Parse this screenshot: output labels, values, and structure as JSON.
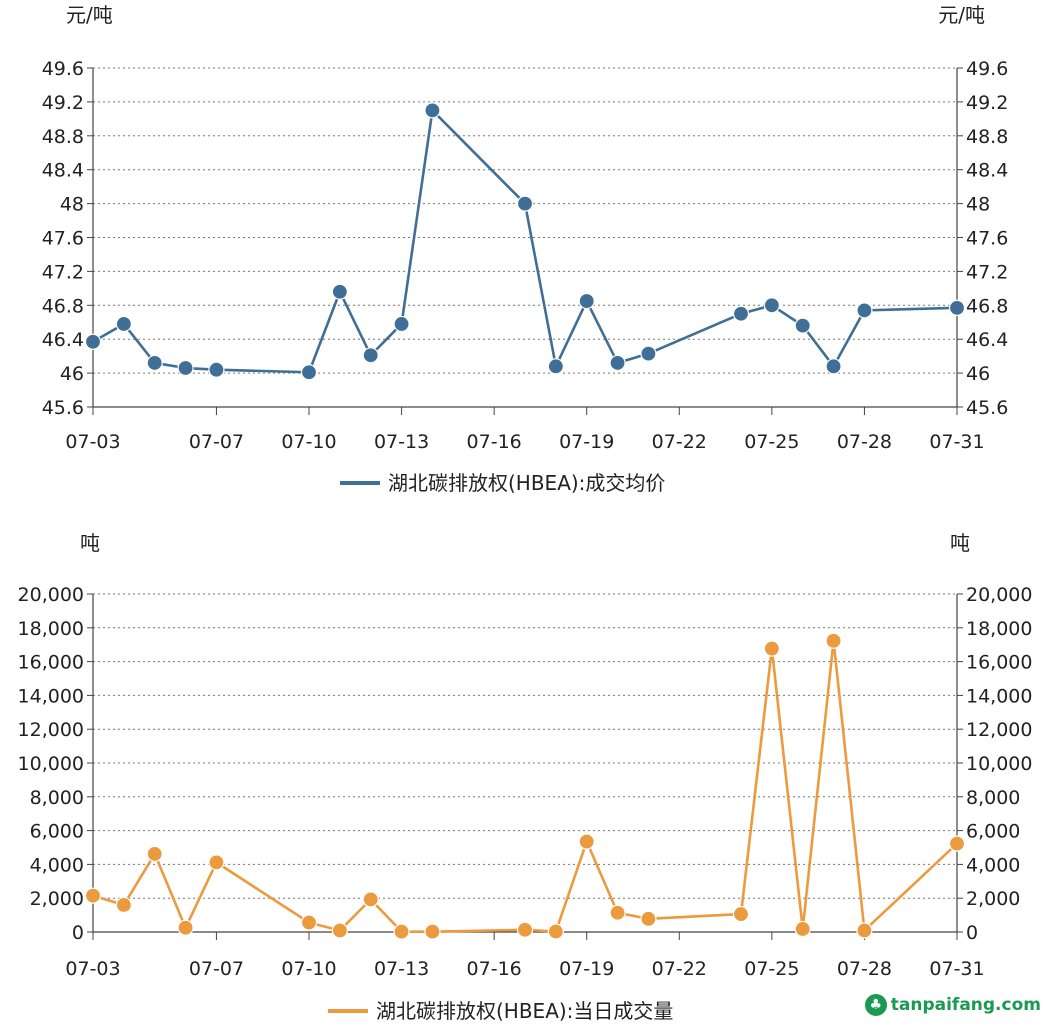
{
  "chart_data": [
    {
      "type": "line",
      "unit_left": "元/吨",
      "unit_right": "元/吨",
      "ylim": [
        45.6,
        49.6
      ],
      "yticks": [
        "49.6",
        "49.2",
        "48.8",
        "48.4",
        "48",
        "47.6",
        "47.2",
        "46.8",
        "46.4",
        "46",
        "45.6"
      ],
      "xticks": [
        "07-03",
        "07-07",
        "07-10",
        "07-13",
        "07-16",
        "07-19",
        "07-22",
        "07-25",
        "07-28",
        "07-31"
      ],
      "legend": "湖北碳排放权(HBEA):成交均价",
      "color": "#3f6f96",
      "series": [
        {
          "x": [
            "07-03",
            "07-04",
            "07-05",
            "07-06",
            "07-07",
            "07-10",
            "07-11",
            "07-12",
            "07-13",
            "07-14",
            "07-17",
            "07-18",
            "07-19",
            "07-20",
            "07-21",
            "07-24",
            "07-25",
            "07-26",
            "07-27",
            "07-28",
            "07-31"
          ],
          "values": [
            46.37,
            46.58,
            46.12,
            46.06,
            46.04,
            46.01,
            46.96,
            46.21,
            46.58,
            49.1,
            48.0,
            46.08,
            46.85,
            46.12,
            46.23,
            46.7,
            46.8,
            46.56,
            46.08,
            46.74,
            46.77
          ]
        }
      ]
    },
    {
      "type": "line",
      "unit_left": "吨",
      "unit_right": "吨",
      "ylim": [
        0,
        20000
      ],
      "yticks": [
        "20,000",
        "18,000",
        "16,000",
        "14,000",
        "12,000",
        "10,000",
        "8,000",
        "6,000",
        "4,000",
        "2,000",
        "0"
      ],
      "xticks": [
        "07-03",
        "07-07",
        "07-10",
        "07-13",
        "07-16",
        "07-19",
        "07-22",
        "07-25",
        "07-28",
        "07-31"
      ],
      "legend": "湖北碳排放权(HBEA):当日成交量",
      "color": "#ec9a3e",
      "series": [
        {
          "x": [
            "07-03",
            "07-04",
            "07-05",
            "07-06",
            "07-07",
            "07-10",
            "07-11",
            "07-12",
            "07-13",
            "07-14",
            "07-17",
            "07-18",
            "07-19",
            "07-20",
            "07-21",
            "07-24",
            "07-25",
            "07-26",
            "07-27",
            "07-28",
            "07-31"
          ],
          "values": [
            2150,
            1600,
            4620,
            250,
            4120,
            560,
            90,
            1930,
            20,
            20,
            130,
            30,
            5350,
            1140,
            780,
            1060,
            16770,
            180,
            17230,
            90,
            5230
          ]
        }
      ]
    }
  ],
  "watermark": {
    "icon": "leaf-icon",
    "text": "tanpaifang.com"
  }
}
